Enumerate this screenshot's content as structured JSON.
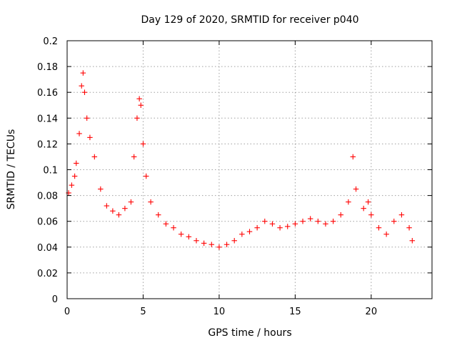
{
  "chart_data": {
    "type": "scatter",
    "title": "Day 129 of 2020, SRMTID for receiver p040",
    "xlabel": "GPS time / hours",
    "ylabel": "SRMTID / TECUs",
    "xlim": [
      0,
      24
    ],
    "ylim": [
      0,
      0.2
    ],
    "xticks": [
      0,
      5,
      10,
      15,
      20
    ],
    "xtick_labels": [
      "0",
      "5",
      "10",
      "15",
      "20"
    ],
    "yticks": [
      0,
      0.02,
      0.04,
      0.06,
      0.08,
      0.1,
      0.12,
      0.14,
      0.16,
      0.18,
      0.2
    ],
    "ytick_labels": [
      "0",
      "0.02",
      "0.04",
      "0.06",
      "0.08",
      "0.1",
      "0.12",
      "0.14",
      "0.16",
      "0.18",
      "0.2"
    ],
    "grid": true,
    "marker": "+",
    "color": "#ff0000",
    "x": [
      0.1,
      0.3,
      0.5,
      0.6,
      0.8,
      0.95,
      1.05,
      1.15,
      1.3,
      1.5,
      1.8,
      2.2,
      2.6,
      3.0,
      3.4,
      3.8,
      4.2,
      4.4,
      4.6,
      4.75,
      4.85,
      5.0,
      5.2,
      5.5,
      6.0,
      6.5,
      7.0,
      7.5,
      8.0,
      8.5,
      9.0,
      9.5,
      10.0,
      10.5,
      11.0,
      11.5,
      12.0,
      12.5,
      13.0,
      13.5,
      14.0,
      14.5,
      15.0,
      15.5,
      16.0,
      16.5,
      17.0,
      17.5,
      18.0,
      18.5,
      18.8,
      19.0,
      19.5,
      19.8,
      20.0,
      20.5,
      21.0,
      21.5,
      22.0,
      22.5,
      22.7
    ],
    "y": [
      0.082,
      0.088,
      0.095,
      0.105,
      0.128,
      0.165,
      0.175,
      0.16,
      0.14,
      0.125,
      0.11,
      0.085,
      0.072,
      0.068,
      0.065,
      0.07,
      0.075,
      0.11,
      0.14,
      0.155,
      0.15,
      0.12,
      0.095,
      0.075,
      0.065,
      0.058,
      0.055,
      0.05,
      0.048,
      0.045,
      0.043,
      0.042,
      0.04,
      0.042,
      0.045,
      0.05,
      0.052,
      0.055,
      0.06,
      0.058,
      0.055,
      0.056,
      0.058,
      0.06,
      0.062,
      0.06,
      0.058,
      0.06,
      0.065,
      0.075,
      0.11,
      0.085,
      0.07,
      0.075,
      0.065,
      0.055,
      0.05,
      0.06,
      0.065,
      0.055,
      0.045
    ]
  }
}
